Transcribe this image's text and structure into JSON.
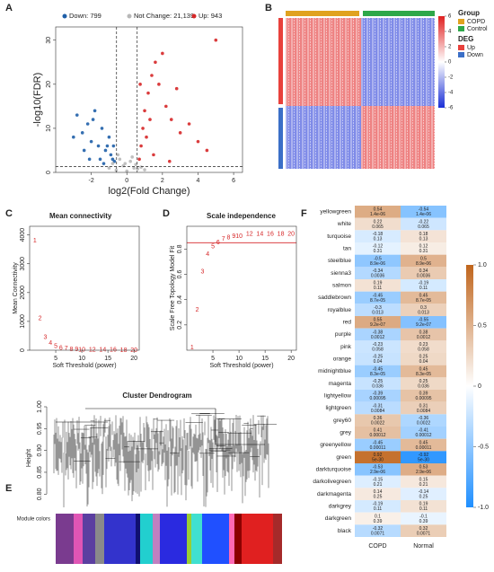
{
  "chart_data": [
    {
      "type": "scatter",
      "label": "A",
      "xlabel": "log2(Fold Change)",
      "ylabel": "-log10(FDR)",
      "xlim": [
        -4,
        6.5
      ],
      "ylim": [
        0,
        33
      ],
      "xticks": [
        -2,
        0,
        2,
        4,
        6
      ],
      "yticks": [
        0,
        10,
        20,
        30
      ],
      "vlines": [
        -0.58,
        0.58
      ],
      "hline": 1.3,
      "series": [
        {
          "name": "Down: 799",
          "color": "#1f5fa8",
          "x": [
            -2.8,
            -2.5,
            -2.2,
            -2.0,
            -1.8,
            -1.6,
            -1.4,
            -1.2,
            -1.0,
            -0.9,
            -0.8,
            -0.7,
            -2.4,
            -1.9,
            -1.5,
            -1.1,
            -3.0,
            -1.3,
            -0.75,
            -2.1
          ],
          "values": [
            13,
            9,
            11,
            7,
            14,
            6,
            10,
            5,
            8,
            4,
            3,
            2.5,
            5,
            12,
            3,
            6,
            8,
            2,
            6,
            3
          ]
        },
        {
          "name": "Not Change: 21,139",
          "color": "#b8b8b8",
          "x": [
            -1.0,
            -0.8,
            -0.6,
            -0.4,
            -0.2,
            0,
            0.2,
            0.4,
            0.6,
            0.8,
            1.0,
            -0.5,
            0.3,
            -0.1,
            0.5
          ],
          "values": [
            1,
            2,
            0.5,
            3,
            1.5,
            0.3,
            2.5,
            1,
            0.8,
            1.2,
            0.6,
            4,
            3.5,
            2,
            1.8
          ]
        },
        {
          "name": "Up: 943",
          "color": "#d62728",
          "x": [
            0.7,
            0.8,
            0.9,
            1.0,
            1.2,
            1.4,
            1.6,
            1.8,
            2.0,
            2.2,
            2.5,
            2.8,
            3.0,
            3.5,
            4.0,
            4.5,
            5.0,
            1.1,
            1.5,
            2.4,
            0.75,
            1.3
          ],
          "values": [
            3,
            6,
            10,
            14,
            18,
            22,
            25,
            20,
            27,
            15,
            12,
            19,
            9,
            11,
            7,
            5,
            30,
            8,
            4,
            2.5,
            20,
            12
          ]
        }
      ]
    },
    {
      "type": "heatmap",
      "label": "B",
      "clim": [
        -6,
        6
      ],
      "cticks": [
        6,
        4,
        2,
        0,
        -2,
        -4,
        -6
      ],
      "colors": [
        "#1a2fd6",
        "#ffffff",
        "#e02020"
      ],
      "legend": [
        {
          "title": "Group",
          "items": [
            {
              "name": "COPD",
              "color": "#e0a21f"
            },
            {
              "name": "Control",
              "color": "#2ea84a"
            }
          ]
        },
        {
          "title": "DEG",
          "items": [
            {
              "name": "Up",
              "color": "#e8413c"
            },
            {
              "name": "Down",
              "color": "#3b6fc7"
            }
          ]
        }
      ]
    },
    {
      "type": "text-scatter",
      "label": "C",
      "title": "Mean connectivity",
      "xlabel": "Soft Threshold (power)",
      "ylabel": "Mean Connectivity",
      "color": "#d62728",
      "xlim": [
        0,
        21
      ],
      "ylim": [
        0,
        4300
      ],
      "xticks": [
        5,
        10,
        15,
        20
      ],
      "yticks": [
        0,
        1000,
        2000,
        3000,
        4000
      ],
      "x": [
        1,
        2,
        3,
        4,
        5,
        6,
        7,
        8,
        9,
        10,
        12,
        14,
        16,
        18,
        20
      ],
      "values": [
        3800,
        1100,
        450,
        250,
        130,
        80,
        50,
        30,
        20,
        15,
        8,
        5,
        3,
        2,
        1
      ]
    },
    {
      "type": "text-scatter",
      "label": "D",
      "title": "Scale independence",
      "xlabel": "Soft Threshold (power)",
      "ylabel": "Scale Free Topology Model Fit",
      "color": "#d62728",
      "xlim": [
        0,
        21
      ],
      "ylim": [
        0,
        0.98
      ],
      "xticks": [
        5,
        10,
        15,
        20
      ],
      "yticks": [
        0.2,
        0.4,
        0.6,
        0.8
      ],
      "hline": 0.85,
      "x": [
        1,
        2,
        3,
        4,
        5,
        6,
        7,
        8,
        9,
        10,
        12,
        14,
        16,
        18,
        20
      ],
      "values": [
        0.02,
        0.32,
        0.62,
        0.76,
        0.82,
        0.85,
        0.88,
        0.89,
        0.9,
        0.9,
        0.92,
        0.92,
        0.92,
        0.92,
        0.92
      ]
    },
    {
      "type": "dendrogram",
      "label": "E",
      "title": "Cluster Dendrogram",
      "ylabel": "Height",
      "colors_label": "Module colors",
      "ylim": [
        0.78,
        1.0
      ],
      "yticks": [
        {
          "value": 0.8,
          "label": "0.80"
        },
        {
          "value": 0.85,
          "label": "0.85"
        },
        {
          "value": 0.9,
          "label": "0.90"
        },
        {
          "value": 0.95,
          "label": "0.95"
        },
        {
          "value": 1,
          "label": "1.00"
        }
      ]
    },
    {
      "type": "matrix",
      "label": "F",
      "columns": [
        "COPD",
        "Normal"
      ],
      "clim": [
        -1,
        1
      ],
      "colors": [
        "#1f8fff",
        "#ffffff",
        "#c0651c"
      ],
      "cticks": [
        {
          "value": 1,
          "label": "1.0"
        },
        0.5,
        0,
        -0.5,
        {
          "value": -1,
          "label": "-1.0"
        }
      ],
      "rows": [
        {
          "name": "yellowgreen",
          "values": [
            0.54,
            -0.54
          ],
          "p": [
            "1.4e-06",
            "1.4e-06"
          ]
        },
        {
          "name": "white",
          "values": [
            0.22,
            -0.22
          ],
          "p": [
            "0.065",
            "0.065"
          ]
        },
        {
          "name": "turquoise",
          "values": [
            -0.18,
            0.18
          ],
          "p": [
            "0.13",
            "0.13"
          ]
        },
        {
          "name": "tan",
          "values": [
            -0.12,
            0.12
          ],
          "p": [
            "0.31",
            "0.31"
          ]
        },
        {
          "name": "steelblue",
          "values": [
            -0.5,
            0.5
          ],
          "p": [
            "8.9e-06",
            "8.9e-06"
          ]
        },
        {
          "name": "sienna3",
          "values": [
            -0.34,
            0.34
          ],
          "p": [
            "0.0036",
            "0.0036"
          ]
        },
        {
          "name": "salmon",
          "values": [
            0.19,
            -0.19
          ],
          "p": [
            "0.11",
            "0.11"
          ]
        },
        {
          "name": "saddlebrown",
          "values": [
            -0.45,
            0.45
          ],
          "p": [
            "8.7e-05",
            "8.7e-05"
          ]
        },
        {
          "name": "royalblue",
          "values": [
            -0.3,
            0.3
          ],
          "p": [
            "0.013",
            "0.013"
          ]
        },
        {
          "name": "red",
          "values": [
            0.55,
            -0.55
          ],
          "p": [
            "9.2e-07",
            "9.2e-07"
          ]
        },
        {
          "name": "purple",
          "values": [
            -0.38,
            0.38
          ],
          "p": [
            "0.0012",
            "0.0012"
          ]
        },
        {
          "name": "pink",
          "values": [
            -0.23,
            0.23
          ],
          "p": [
            "0.058",
            "0.058"
          ]
        },
        {
          "name": "orange",
          "values": [
            -0.25,
            0.25
          ],
          "p": [
            "0.04",
            "0.04"
          ]
        },
        {
          "name": "midnightblue",
          "values": [
            -0.45,
            0.45
          ],
          "p": [
            "8.3e-05",
            "8.3e-05"
          ]
        },
        {
          "name": "magenta",
          "values": [
            -0.25,
            0.25
          ],
          "p": [
            "0.036",
            "0.036"
          ]
        },
        {
          "name": "lightyellow",
          "values": [
            -0.39,
            0.39
          ],
          "p": [
            "0.00095",
            "0.00095"
          ]
        },
        {
          "name": "lightgreen",
          "values": [
            -0.31,
            0.31
          ],
          "p": [
            "0.0084",
            "0.0084"
          ]
        },
        {
          "name": "grey60",
          "values": [
            0.36,
            -0.36
          ],
          "p": [
            "0.0022",
            "0.0022"
          ]
        },
        {
          "name": "grey",
          "values": [
            0.41,
            -0.41
          ],
          "p": [
            "0.00012",
            "0.00012"
          ]
        },
        {
          "name": "greenyellow",
          "values": [
            -0.45,
            0.45
          ],
          "p": [
            "0.00011",
            "0.00011"
          ]
        },
        {
          "name": "green",
          "values": [
            0.92,
            -0.92
          ],
          "p": [
            "5e-30",
            "5e-30"
          ]
        },
        {
          "name": "darkturquoise",
          "values": [
            -0.53,
            0.53
          ],
          "p": [
            "2.9e-06",
            "2.9e-06"
          ]
        },
        {
          "name": "darkolivegreen",
          "values": [
            -0.15,
            0.15
          ],
          "p": [
            "0.21",
            "0.21"
          ]
        },
        {
          "name": "darkmagenta",
          "values": [
            0.14,
            -0.14
          ],
          "p": [
            "0.25",
            "0.25"
          ]
        },
        {
          "name": "darkgrey",
          "values": [
            -0.19,
            0.19
          ],
          "p": [
            "0.11",
            "0.11"
          ]
        },
        {
          "name": "darkgreen",
          "values": [
            0.1,
            -0.1
          ],
          "p": [
            "0.39",
            "0.39"
          ]
        },
        {
          "name": "black",
          "values": [
            -0.32,
            0.32
          ],
          "p": [
            "0.0071",
            "0.0071"
          ]
        }
      ]
    }
  ]
}
